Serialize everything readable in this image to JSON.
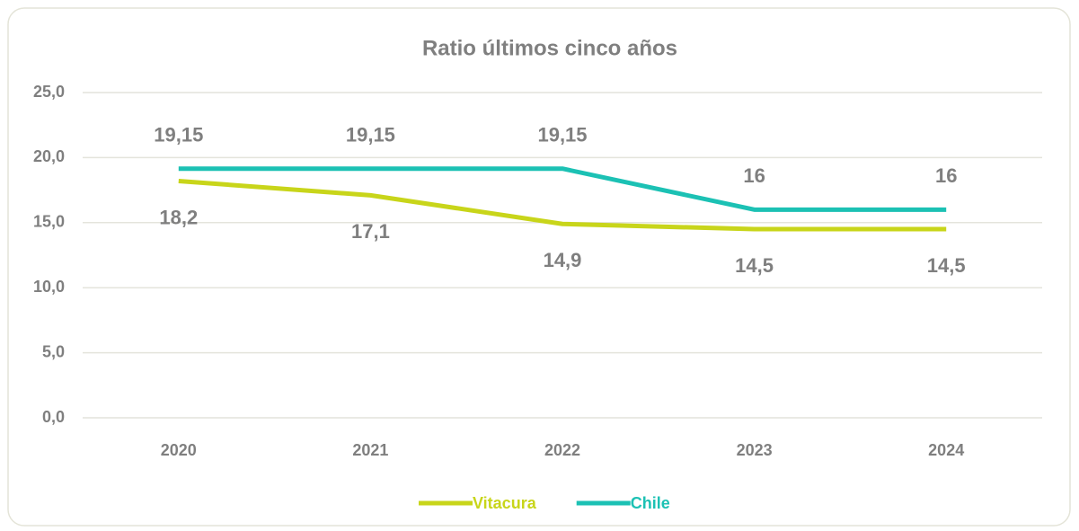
{
  "chart_data": {
    "type": "line",
    "title": "Ratio últimos cinco años",
    "categories": [
      "2020",
      "2021",
      "2022",
      "2023",
      "2024"
    ],
    "series": [
      {
        "name": "Vitacura",
        "color": "#c8d51a",
        "values": [
          18.2,
          17.1,
          14.9,
          14.5,
          14.5
        ],
        "value_labels": [
          "18,2",
          "17,1",
          "14,9",
          "14,5",
          "14,5"
        ]
      },
      {
        "name": "Chile",
        "color": "#1cc1b4",
        "values": [
          19.15,
          19.15,
          19.15,
          16,
          16
        ],
        "value_labels": [
          "19,15",
          "19,15",
          "19,15",
          "16",
          "16"
        ]
      }
    ],
    "ylim": [
      0,
      25
    ],
    "yticks": [
      {
        "value": 0,
        "label": "0,0"
      },
      {
        "value": 5,
        "label": "5,0"
      },
      {
        "value": 10,
        "label": "10,0"
      },
      {
        "value": 15,
        "label": "15,0"
      },
      {
        "value": 20,
        "label": "20,0"
      },
      {
        "value": 25,
        "label": "25,0"
      }
    ],
    "grid": true,
    "legend": "bottom"
  }
}
